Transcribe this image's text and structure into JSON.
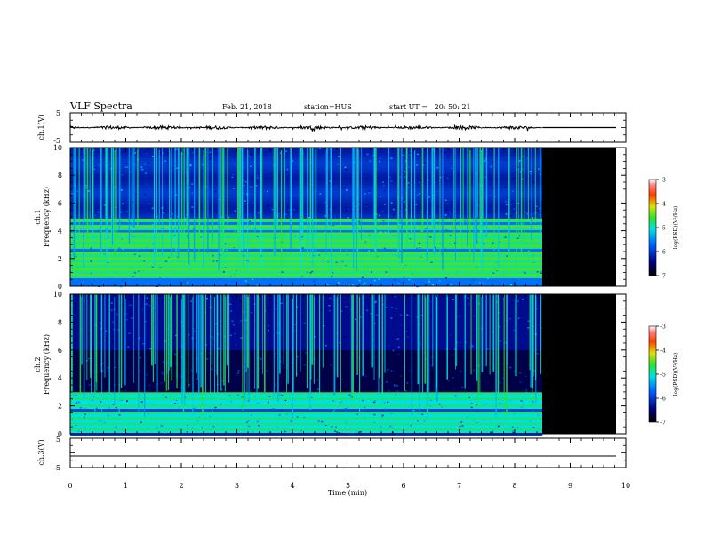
{
  "header": {
    "title": "VLF Spectra",
    "date": "Feb. 21, 2018",
    "station": "station=HUS",
    "start": "start UT =   20: 50: 21"
  },
  "chart_data": [
    {
      "type": "line",
      "panel": "ch1-waveform",
      "ylabel": "ch.1(V)",
      "ylim": [
        -5,
        5
      ],
      "yticks": [
        "5",
        "-5"
      ],
      "x_extent_min": [
        0,
        8.5
      ],
      "baseline_v": 0,
      "note_after_data": "flat line from 8.5 to 9.85 min"
    },
    {
      "type": "heatmap",
      "panel": "ch1-spectrogram",
      "ylabel_top": "ch.1",
      "ylabel": "Frequency (kHz)",
      "ylim": [
        0,
        10
      ],
      "yticks": [
        "0",
        "2",
        "4",
        "6",
        "8",
        "10"
      ],
      "data_extent_min": [
        0,
        8.5
      ],
      "nodata_extent_min": [
        8.5,
        9.85
      ],
      "strong_bands_khz": [
        0.8,
        1.2,
        1.6,
        2.0,
        2.4,
        2.9,
        3.3,
        3.8,
        4.3,
        4.8
      ],
      "colorbar": {
        "label": "log(PSD)(V²/Hz)",
        "range": [
          -7,
          -3
        ],
        "ticks": [
          "-3",
          "-4",
          "-5",
          "-6",
          "-7"
        ]
      }
    },
    {
      "type": "heatmap",
      "panel": "ch2-spectrogram",
      "ylabel_top": "ch.2",
      "ylabel": "Frequency (kHz)",
      "ylim": [
        0,
        10
      ],
      "yticks": [
        "0",
        "2",
        "4",
        "6",
        "8",
        "10"
      ],
      "data_extent_min": [
        0,
        8.5
      ],
      "nodata_extent_min": [
        8.5,
        9.85
      ],
      "strong_bands_khz": [
        0.3,
        0.7,
        1.1,
        1.5,
        2.0,
        2.5,
        2.9
      ],
      "colorbar": {
        "label": "log(PSD)(V²/Hz)",
        "range": [
          -7,
          -3
        ],
        "ticks": [
          "-3",
          "-4",
          "-5",
          "-6",
          "-7"
        ]
      }
    },
    {
      "type": "line",
      "panel": "ch3-waveform",
      "ylabel": "ch.3(V)",
      "ylim": [
        -5,
        5
      ],
      "yticks": [
        "5",
        "-5"
      ],
      "baseline_v": -1,
      "x_extent_min": [
        0,
        9.85
      ]
    }
  ],
  "xaxis": {
    "label": "Time (min)",
    "range": [
      0,
      10
    ],
    "ticks": [
      "0",
      "1",
      "2",
      "3",
      "4",
      "5",
      "6",
      "7",
      "8",
      "9",
      "10"
    ]
  },
  "colors": {
    "nodata": "#000000",
    "frame": "#000000",
    "background": "#ffffff"
  }
}
